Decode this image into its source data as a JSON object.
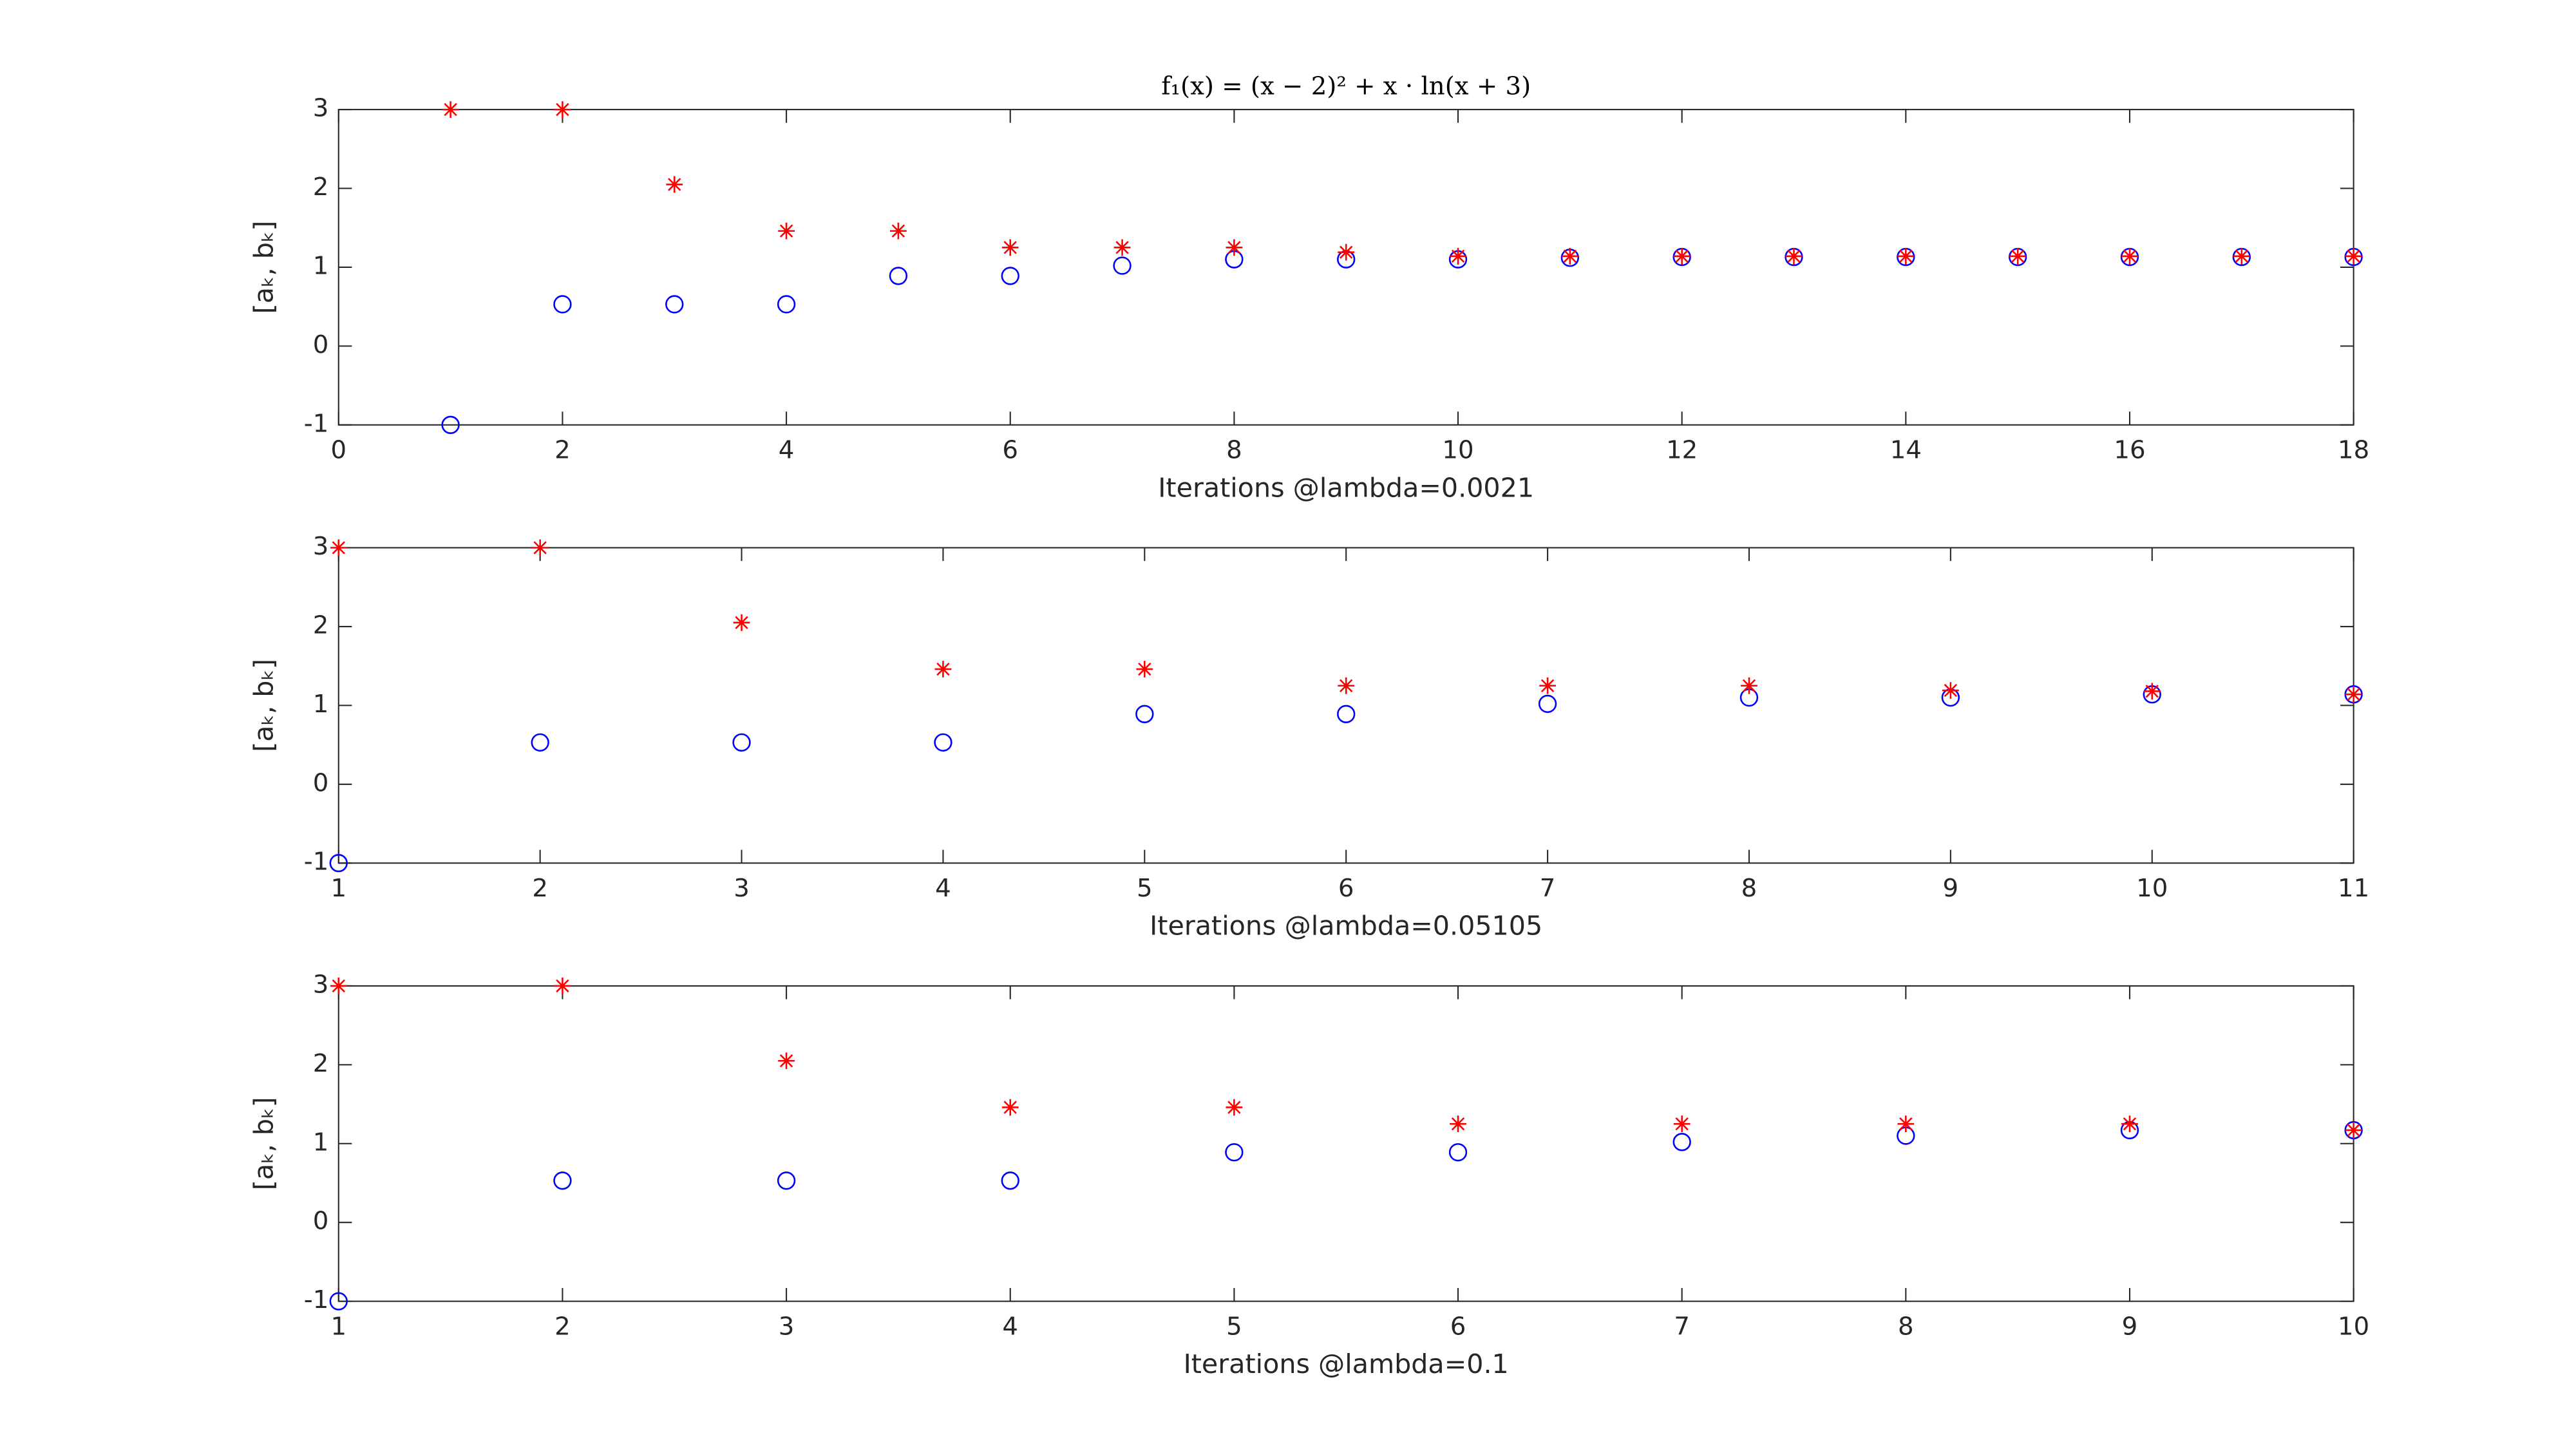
{
  "chart_data": [
    {
      "type": "scatter",
      "title": "f₁(x) = (x − 2)² + x · ln(x + 3)",
      "x_label": "Iterations @lambda=0.0021",
      "y_label": "[aₖ, bₖ]",
      "x": [
        1,
        2,
        3,
        4,
        5,
        6,
        7,
        8,
        9,
        10,
        11,
        12,
        13,
        14,
        15,
        16,
        17,
        18
      ],
      "series": [
        {
          "color": "#0000ff",
          "marker": "circle",
          "values": [
            -1,
            0.53,
            0.53,
            0.53,
            0.89,
            0.89,
            1.02,
            1.1,
            1.1,
            1.1,
            1.12,
            1.13,
            1.13,
            1.13,
            1.13,
            1.13,
            1.13,
            1.13
          ]
        },
        {
          "color": "#ff0000",
          "marker": "star",
          "values": [
            3,
            3,
            2.05,
            1.46,
            1.46,
            1.25,
            1.25,
            1.25,
            1.19,
            1.14,
            1.14,
            1.14,
            1.14,
            1.14,
            1.14,
            1.14,
            1.14,
            1.14
          ]
        }
      ],
      "xlim": [
        0,
        18
      ],
      "xticks": [
        0,
        2,
        4,
        6,
        8,
        10,
        12,
        14,
        16,
        18
      ],
      "ylim": [
        -1,
        3
      ],
      "yticks": [
        -1,
        0,
        1,
        2,
        3
      ]
    },
    {
      "type": "scatter",
      "x_label": "Iterations @lambda=0.05105",
      "y_label": "[aₖ, bₖ]",
      "x": [
        1,
        2,
        3,
        4,
        5,
        6,
        7,
        8,
        9,
        10,
        11
      ],
      "series": [
        {
          "color": "#0000ff",
          "marker": "circle",
          "values": [
            -1,
            0.53,
            0.53,
            0.53,
            0.89,
            0.89,
            1.02,
            1.1,
            1.1,
            1.14,
            1.14
          ]
        },
        {
          "color": "#ff0000",
          "marker": "star",
          "values": [
            3,
            3,
            2.05,
            1.46,
            1.46,
            1.25,
            1.25,
            1.25,
            1.19,
            1.18,
            1.14
          ]
        }
      ],
      "xlim": [
        1,
        11
      ],
      "xticks": [
        1,
        2,
        3,
        4,
        5,
        6,
        7,
        8,
        9,
        10,
        11
      ],
      "ylim": [
        -1,
        3
      ],
      "yticks": [
        -1,
        0,
        1,
        2,
        3
      ]
    },
    {
      "type": "scatter",
      "x_label": "Iterations @lambda=0.1",
      "y_label": "[aₖ, bₖ]",
      "x": [
        1,
        2,
        3,
        4,
        5,
        6,
        7,
        8,
        9,
        10
      ],
      "series": [
        {
          "color": "#0000ff",
          "marker": "circle",
          "values": [
            -1,
            0.53,
            0.53,
            0.53,
            0.89,
            0.89,
            1.02,
            1.1,
            1.17,
            1.17
          ]
        },
        {
          "color": "#ff0000",
          "marker": "star",
          "values": [
            3,
            3,
            2.05,
            1.46,
            1.46,
            1.25,
            1.25,
            1.25,
            1.25,
            1.17
          ]
        }
      ],
      "xlim": [
        1,
        10
      ],
      "xticks": [
        1,
        2,
        3,
        4,
        5,
        6,
        7,
        8,
        9,
        10
      ],
      "ylim": [
        -1,
        3
      ],
      "yticks": [
        -1,
        0,
        1,
        2,
        3
      ]
    }
  ]
}
